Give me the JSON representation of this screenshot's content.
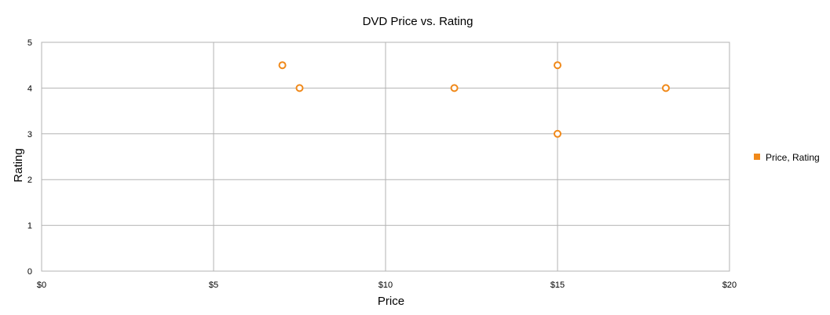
{
  "chart_data": {
    "type": "scatter",
    "title": "DVD Price vs. Rating",
    "xlabel": "Price",
    "ylabel": "Rating",
    "xlim": [
      0,
      20
    ],
    "ylim": [
      0,
      5
    ],
    "x_ticks": [
      {
        "value": 0,
        "label": "$0"
      },
      {
        "value": 5,
        "label": "$5"
      },
      {
        "value": 10,
        "label": "$10"
      },
      {
        "value": 15,
        "label": "$15"
      },
      {
        "value": 20,
        "label": "$20"
      }
    ],
    "y_ticks": [
      {
        "value": 0,
        "label": "0"
      },
      {
        "value": 1,
        "label": "1"
      },
      {
        "value": 2,
        "label": "2"
      },
      {
        "value": 3,
        "label": "3"
      },
      {
        "value": 4,
        "label": "4"
      },
      {
        "value": 5,
        "label": "5"
      }
    ],
    "grid": true,
    "legend_position": "right",
    "series": [
      {
        "name": "Price, Rating",
        "color": "#f0891a",
        "points": [
          {
            "x": 7.0,
            "y": 4.5
          },
          {
            "x": 7.5,
            "y": 4.0
          },
          {
            "x": 12.0,
            "y": 4.0
          },
          {
            "x": 15.0,
            "y": 4.5
          },
          {
            "x": 15.0,
            "y": 3.0
          },
          {
            "x": 18.15,
            "y": 4.0
          }
        ]
      }
    ]
  }
}
